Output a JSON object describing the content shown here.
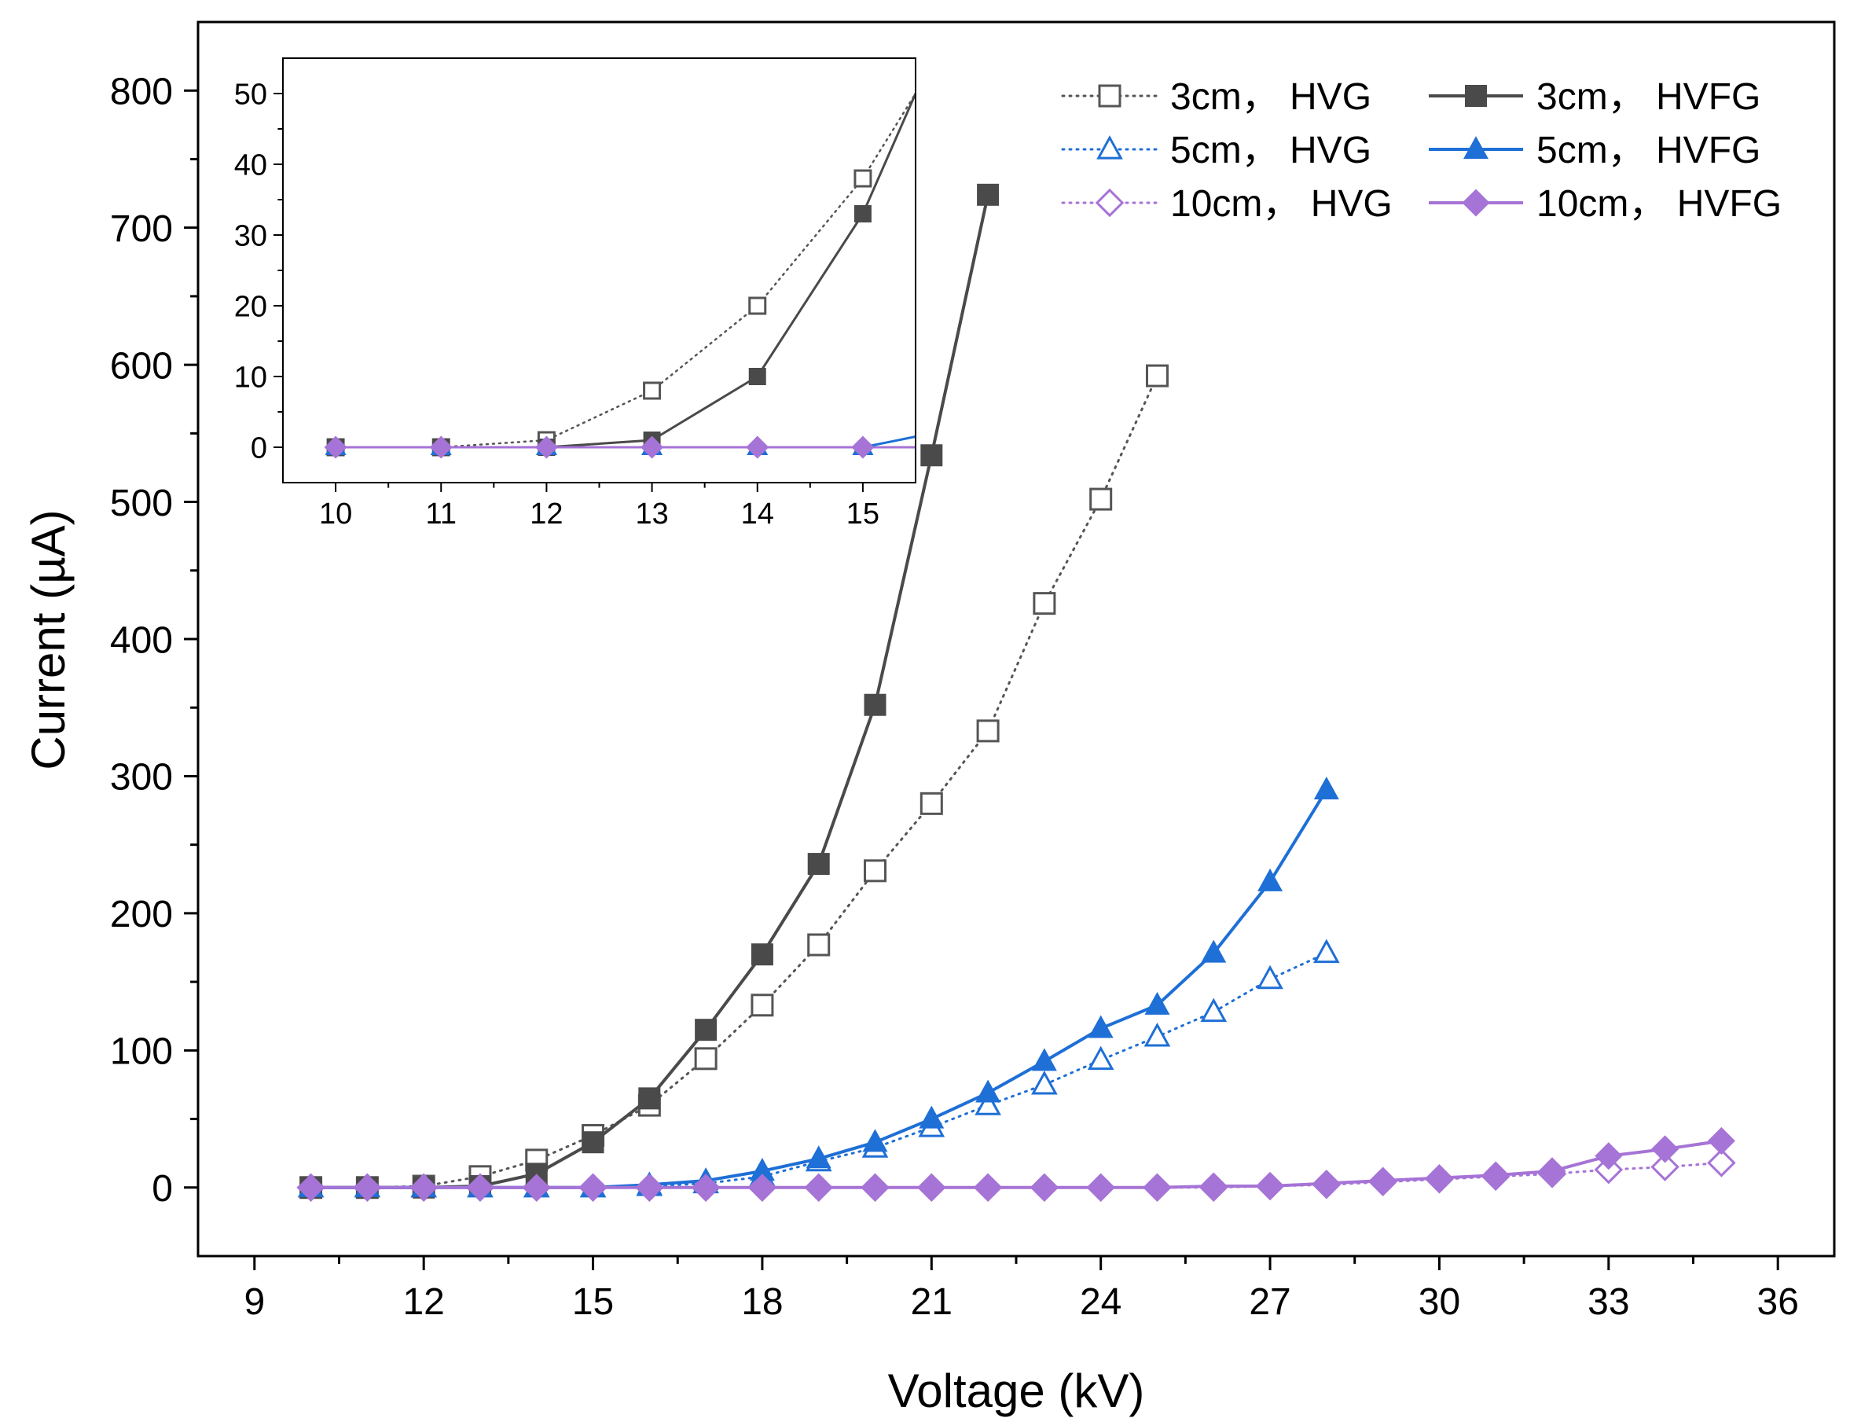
{
  "chart_data": [
    {
      "id": "main",
      "type": "line",
      "xlabel": "Voltage (kV)",
      "ylabel": "Current (µA)",
      "xlim": [
        8,
        37
      ],
      "ylim": [
        -50,
        850
      ],
      "xticks": [
        9,
        12,
        15,
        18,
        21,
        24,
        27,
        30,
        33,
        36
      ],
      "yticks": [
        0,
        100,
        200,
        300,
        400,
        500,
        600,
        700,
        800
      ],
      "grid": false,
      "legend_position": "top-right",
      "series": [
        {
          "name": "3cm， HVG",
          "color": "#555555",
          "line": "dotted",
          "marker": "square",
          "filled": false,
          "x": [
            10,
            11,
            12,
            13,
            14,
            15,
            16,
            17,
            18,
            19,
            20,
            21,
            22,
            23,
            24,
            25
          ],
          "y": [
            0,
            0,
            1,
            8,
            20,
            38,
            60,
            94,
            133,
            177,
            231,
            280,
            333,
            426,
            502,
            592
          ]
        },
        {
          "name": "5cm， HVG",
          "color": "#1e6fd6",
          "line": "dotted",
          "marker": "triangle",
          "filled": false,
          "x": [
            10,
            11,
            12,
            13,
            14,
            15,
            16,
            17,
            18,
            19,
            20,
            21,
            22,
            23,
            24,
            25,
            26,
            27,
            28
          ],
          "y": [
            0,
            0,
            0,
            0,
            0,
            0,
            1,
            3,
            8,
            19,
            29,
            44,
            60,
            75,
            93,
            110,
            128,
            152,
            171
          ]
        },
        {
          "name": "10cm， HVG",
          "color": "#a673d6",
          "line": "dotted",
          "marker": "diamond",
          "filled": false,
          "x": [
            10,
            11,
            12,
            13,
            14,
            15,
            16,
            17,
            18,
            19,
            20,
            21,
            22,
            23,
            24,
            25,
            26,
            27,
            28,
            29,
            30,
            31,
            32,
            33,
            34,
            35
          ],
          "y": [
            0,
            0,
            0,
            0,
            0,
            0,
            0,
            0,
            0,
            0,
            0,
            0,
            0,
            0,
            0,
            0,
            0,
            1,
            2,
            4,
            6,
            8,
            10,
            13,
            15,
            18
          ]
        },
        {
          "name": "3cm， HVFG",
          "color": "#4a4a4a",
          "line": "solid",
          "marker": "square",
          "filled": true,
          "x": [
            10,
            11,
            12,
            13,
            14,
            15,
            16,
            17,
            18,
            19,
            20,
            21,
            22
          ],
          "y": [
            0,
            0,
            0,
            1,
            10,
            33,
            65,
            115,
            170,
            236,
            352,
            534,
            724
          ]
        },
        {
          "name": "5cm， HVFG",
          "color": "#1e6fd6",
          "line": "solid",
          "marker": "triangle",
          "filled": true,
          "x": [
            10,
            11,
            12,
            13,
            14,
            15,
            16,
            17,
            18,
            19,
            20,
            21,
            22,
            23,
            24,
            25,
            26,
            27,
            28
          ],
          "y": [
            0,
            0,
            0,
            0,
            0,
            0,
            2,
            5,
            12,
            21,
            33,
            50,
            69,
            92,
            116,
            133,
            171,
            223,
            290
          ]
        },
        {
          "name": "10cm， HVFG",
          "color": "#a673d6",
          "line": "solid",
          "marker": "diamond",
          "filled": true,
          "x": [
            10,
            11,
            12,
            13,
            14,
            15,
            16,
            17,
            18,
            19,
            20,
            21,
            22,
            23,
            24,
            25,
            26,
            27,
            28,
            29,
            30,
            31,
            32,
            33,
            34,
            35
          ],
          "y": [
            0,
            0,
            0,
            0,
            0,
            0,
            0,
            0,
            0,
            0,
            0,
            0,
            0,
            0,
            0,
            0,
            1,
            1,
            3,
            5,
            7,
            9,
            12,
            23,
            28,
            34
          ]
        }
      ]
    },
    {
      "id": "inset",
      "type": "line",
      "xlabel": "",
      "ylabel": "",
      "xlim": [
        9.5,
        15.5
      ],
      "ylim": [
        -5,
        55
      ],
      "xticks": [
        10,
        11,
        12,
        13,
        14,
        15
      ],
      "yticks": [
        0,
        10,
        20,
        30,
        40,
        50
      ],
      "grid": false,
      "series": [
        {
          "name": "3cm， HVG",
          "color": "#555555",
          "line": "dotted",
          "marker": "square",
          "filled": false,
          "x": [
            10,
            11,
            12,
            13,
            14,
            15,
            15.5
          ],
          "y": [
            0,
            0,
            1,
            8,
            20,
            38,
            50
          ]
        },
        {
          "name": "3cm， HVFG",
          "color": "#4a4a4a",
          "line": "solid",
          "marker": "square",
          "filled": true,
          "x": [
            10,
            11,
            12,
            13,
            14,
            15,
            15.5
          ],
          "y": [
            0,
            0,
            0,
            1,
            10,
            33,
            50
          ]
        },
        {
          "name": "5cm， HVG",
          "color": "#1e6fd6",
          "line": "dotted",
          "marker": "triangle",
          "filled": false,
          "x": [
            10,
            11,
            12,
            13,
            14,
            15
          ],
          "y": [
            0,
            0,
            0,
            0,
            0,
            0
          ]
        },
        {
          "name": "5cm， HVFG",
          "color": "#1e6fd6",
          "line": "solid",
          "marker": "triangle",
          "filled": true,
          "x": [
            10,
            11,
            12,
            13,
            14,
            15,
            15.5
          ],
          "y": [
            0,
            0,
            0,
            0,
            0,
            0,
            1.5
          ]
        },
        {
          "name": "10cm， HVG",
          "color": "#a673d6",
          "line": "dotted",
          "marker": "diamond",
          "filled": false,
          "x": [
            10,
            11,
            12,
            13,
            14,
            15,
            15.5
          ],
          "y": [
            0,
            0,
            0,
            0,
            0,
            0,
            0
          ]
        },
        {
          "name": "10cm， HVFG",
          "color": "#a673d6",
          "line": "solid",
          "marker": "diamond",
          "filled": true,
          "x": [
            10,
            11,
            12,
            13,
            14,
            15,
            15.5
          ],
          "y": [
            0,
            0,
            0,
            0,
            0,
            0,
            0
          ]
        }
      ]
    }
  ]
}
